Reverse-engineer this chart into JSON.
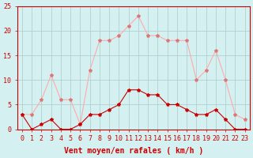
{
  "hours": [
    0,
    1,
    2,
    3,
    4,
    5,
    6,
    7,
    8,
    9,
    10,
    11,
    12,
    13,
    14,
    15,
    16,
    17,
    18,
    19,
    20,
    21,
    22,
    23
  ],
  "wind_avg": [
    3,
    0,
    1,
    2,
    0,
    0,
    1,
    3,
    3,
    4,
    5,
    8,
    8,
    7,
    7,
    5,
    5,
    4,
    3,
    3,
    4,
    2,
    0,
    0
  ],
  "wind_gust": [
    3,
    3,
    6,
    11,
    6,
    6,
    1,
    12,
    18,
    18,
    19,
    21,
    23,
    19,
    19,
    18,
    18,
    18,
    10,
    12,
    16,
    10,
    3,
    2
  ],
  "line_color_avg": "#cc0000",
  "line_color_gust": "#ffaaaa",
  "marker_color_avg": "#cc0000",
  "marker_color_gust": "#dd7777",
  "bg_color": "#d4f0f0",
  "grid_color": "#aacccc",
  "axis_label_color": "#cc0000",
  "tick_color": "#cc0000",
  "xlabel": "Vent moyen/en rafales ( km/h )",
  "ylim": [
    0,
    25
  ],
  "yticks": [
    0,
    5,
    10,
    15,
    20,
    25
  ],
  "label_fontsize": 7,
  "tick_fontsize": 6
}
